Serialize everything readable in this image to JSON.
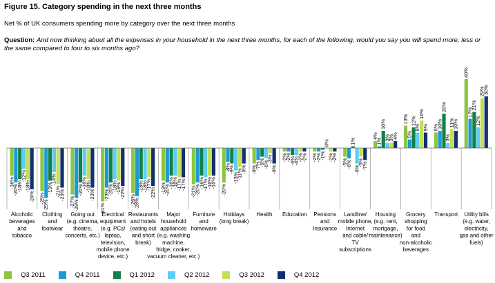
{
  "figure": {
    "title": "Figure 15. Category spending in the next three months",
    "subtitle": "Net % of UK consumers spending more by category over the next three months",
    "question_label": "Question:",
    "question_text": "And now thinking about all the expenses in your household in the next three months, for each of the following, would you say you will spend more, less or the same compared to four to six months ago?"
  },
  "chart_data": {
    "type": "bar",
    "grouped": true,
    "ylim": [
      -40,
      45
    ],
    "value_format": "{v}%",
    "categories": [
      [
        "Alcoholic",
        "beverages",
        "and",
        "tobacco"
      ],
      [
        "Clothing",
        "and",
        "footwear"
      ],
      [
        "Going out",
        "(e.g. cinema,",
        "theatre,",
        "concerts, etc.)"
      ],
      [
        "Electrical",
        "equipment",
        "(e.g. PCs/",
        "laptop,",
        "television,",
        "mobile phone",
        "device, etc.)"
      ],
      [
        "Restaurants",
        "and hotels",
        "(eating out",
        "and short",
        "break)"
      ],
      [
        "Major",
        "household",
        "appliances",
        "(e.g. washing",
        "machine,",
        "fridge, cooker,",
        "vacuum cleaner, etc.)"
      ],
      [
        "Furniture",
        "and",
        "homeware"
      ],
      [
        "Holidays",
        "(long break)"
      ],
      [
        "Health"
      ],
      [
        "Education"
      ],
      [
        "Pensions",
        "and",
        "Insurance"
      ],
      [
        "Landline/",
        "mobile phone,",
        "Internet",
        "and cable/",
        "TV",
        "subscriptions"
      ],
      [
        "Housing",
        "(e.g. rent,",
        "mortgage,",
        "maintenance)"
      ],
      [
        "Grocery",
        "shopping",
        "for food",
        "and",
        "non-alcoholic",
        "beverages"
      ],
      [
        "Transport"
      ],
      [
        "Utility bills",
        "(e.g. water,",
        "electricity,",
        "gas and other",
        "fuels)"
      ]
    ],
    "series": [
      {
        "name": "Q3 2011",
        "color": "#8cc63f",
        "values": [
          -16,
          -25,
          -27,
          -31,
          -26,
          -19,
          -21,
          -20,
          -9,
          -2,
          -2,
          -5,
          4,
          13,
          9,
          40
        ]
      },
      {
        "name": "Q4 2011",
        "color": "#1b9ad6",
        "values": [
          -20,
          -29,
          -29,
          -23,
          -28,
          -20,
          -20,
          -8,
          -7,
          -2,
          -2,
          -6,
          1,
          5,
          10,
          17
        ]
      },
      {
        "name": "Q1 2012",
        "color": "#138049",
        "values": [
          -18,
          -19,
          -20,
          -20,
          -18,
          -16,
          -16,
          -9,
          -5,
          -4,
          -1,
          1,
          10,
          12,
          20,
          21
        ]
      },
      {
        "name": "Q2 2012",
        "color": "#5ecdf3",
        "values": [
          -12,
          -14,
          -16,
          -18,
          -18,
          -16,
          -17,
          -13,
          -6,
          -4,
          0,
          -9,
          3,
          9,
          3,
          12
        ]
      },
      {
        "name": "Q3 2012",
        "color": "#c2df56",
        "values": [
          -18,
          -21,
          -18,
          -19,
          -17,
          -17,
          -16,
          -11,
          -3,
          -2,
          -2,
          -5,
          3,
          16,
          11,
          29
        ]
      },
      {
        "name": "Q4 2012",
        "color": "#13306d",
        "values": [
          -24,
          -23,
          -23,
          -22,
          -22,
          -17,
          -16,
          -9,
          -9,
          -2,
          -2,
          -7,
          4,
          9,
          10,
          30
        ]
      }
    ]
  }
}
